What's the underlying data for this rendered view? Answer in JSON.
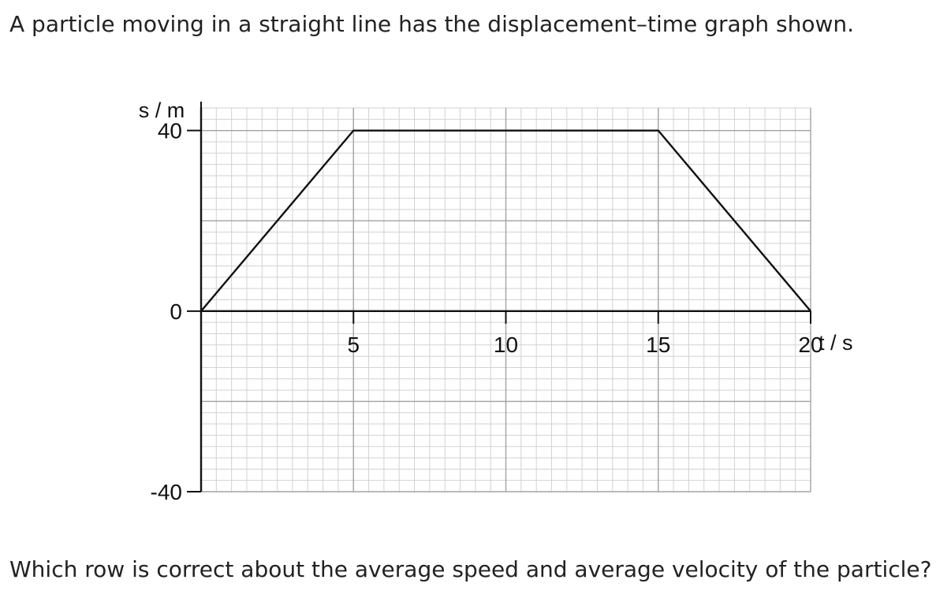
{
  "question": {
    "intro": "A particle moving in a straight line has the displacement–time graph shown.",
    "prompt": "Which row is correct about the average speed and average velocity of the particle?"
  },
  "chart_data": {
    "type": "line",
    "title": "",
    "xlabel": "t / s",
    "ylabel": "s / m",
    "xlim": [
      0,
      20
    ],
    "ylim": [
      -40,
      45
    ],
    "x_ticks": [
      5,
      10,
      15,
      20
    ],
    "x_tick_labels": [
      "5",
      "10",
      "15",
      "20"
    ],
    "y_ticks": [
      40,
      0,
      -40
    ],
    "y_tick_labels": [
      "40",
      "0",
      "-40"
    ],
    "grid": true,
    "series": [
      {
        "x": [
          0,
          5,
          15,
          20
        ],
        "y": [
          0,
          40,
          40,
          0
        ]
      }
    ]
  }
}
